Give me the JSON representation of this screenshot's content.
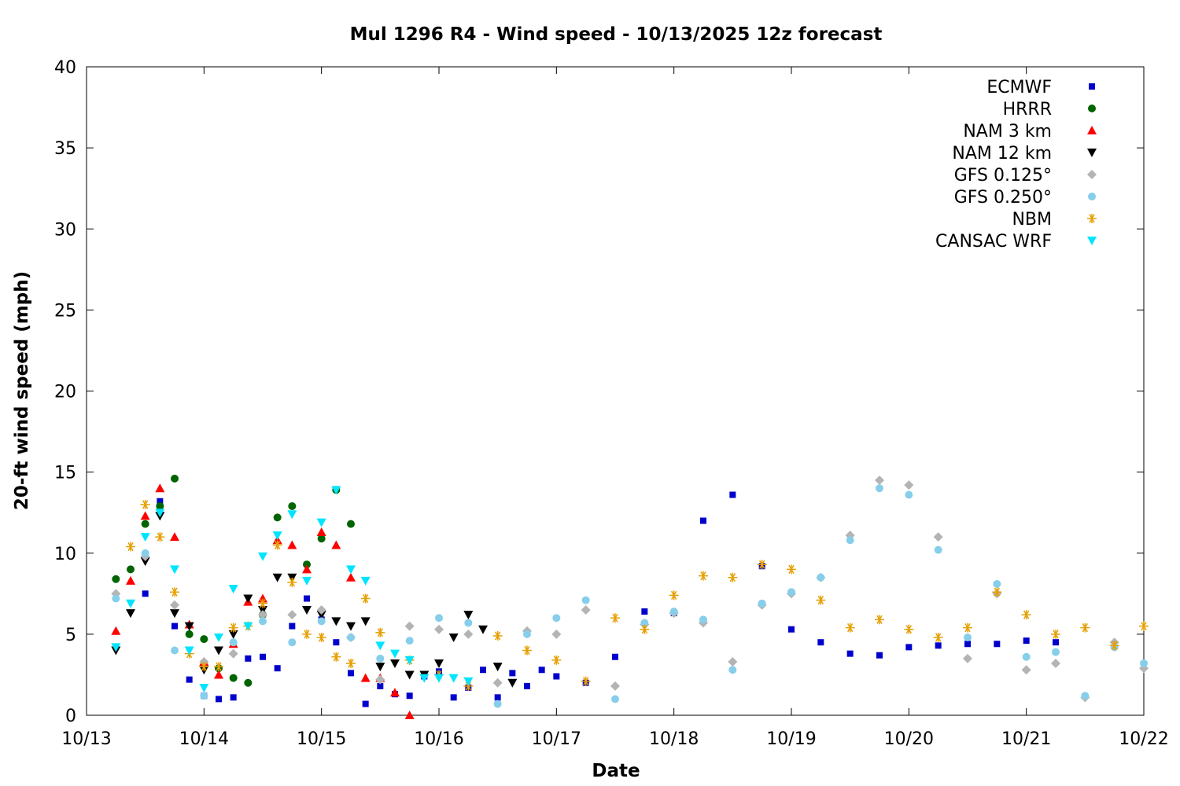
{
  "chart_data": {
    "type": "scatter",
    "title": "Mul 1296 R4 - Wind speed - 10/13/2025 12z forecast",
    "xlabel": "Date",
    "ylabel": "20-ft wind speed (mph)",
    "x_unit": "date (2025)",
    "xlim": [
      "2025-10-13T00:00",
      "2025-10-22T00:00"
    ],
    "ylim": [
      0,
      40
    ],
    "x_ticks": [
      "10/13",
      "10/14",
      "10/15",
      "10/16",
      "10/17",
      "10/18",
      "10/19",
      "10/20",
      "10/21",
      "10/22"
    ],
    "y_ticks": [
      "0",
      "5",
      "10",
      "15",
      "20",
      "25",
      "30",
      "35",
      "40"
    ],
    "grid": false,
    "legend_placement": "top-right",
    "series": [
      {
        "name": "ECMWF",
        "color": "#0000cc",
        "marker": "square",
        "x": [
          "10/13 12:00",
          "10/13 15:00",
          "10/13 18:00",
          "10/13 21:00",
          "10/14 00:00",
          "10/14 03:00",
          "10/14 06:00",
          "10/14 09:00",
          "10/14 12:00",
          "10/14 15:00",
          "10/14 18:00",
          "10/14 21:00",
          "10/15 00:00",
          "10/15 03:00",
          "10/15 06:00",
          "10/15 09:00",
          "10/15 12:00",
          "10/15 15:00",
          "10/15 18:00",
          "10/15 21:00",
          "10/16 00:00",
          "10/16 03:00",
          "10/16 06:00",
          "10/16 09:00",
          "10/16 12:00",
          "10/16 15:00",
          "10/16 18:00",
          "10/16 21:00",
          "10/17 00:00",
          "10/17 06:00",
          "10/17 12:00",
          "10/17 18:00",
          "10/18 00:00",
          "10/18 06:00",
          "10/18 12:00",
          "10/18 18:00",
          "10/19 00:00",
          "10/19 06:00",
          "10/19 12:00",
          "10/19 18:00",
          "10/20 00:00",
          "10/20 06:00",
          "10/20 12:00",
          "10/20 18:00",
          "10/21 00:00",
          "10/21 06:00"
        ],
        "y": [
          7.5,
          13.2,
          5.5,
          2.2,
          1.2,
          1.0,
          1.1,
          3.5,
          3.6,
          2.9,
          5.5,
          7.2,
          5.9,
          4.5,
          2.6,
          0.7,
          1.8,
          1.3,
          1.2,
          2.4,
          2.7,
          1.1,
          1.7,
          2.8,
          1.1,
          2.6,
          1.8,
          2.8,
          2.4,
          2.0,
          3.6,
          6.4,
          6.3,
          12.0,
          13.6,
          9.2,
          5.3,
          4.5,
          3.8,
          3.7,
          4.2,
          4.3,
          4.4,
          4.4,
          4.6,
          4.5
        ]
      },
      {
        "name": "HRRR",
        "color": "#006400",
        "marker": "circle",
        "x": [
          "10/13 06:00",
          "10/13 09:00",
          "10/13 12:00",
          "10/13 15:00",
          "10/13 18:00",
          "10/13 21:00",
          "10/14 00:00",
          "10/14 03:00",
          "10/14 06:00",
          "10/14 09:00",
          "10/14 12:00",
          "10/14 15:00",
          "10/14 18:00",
          "10/14 21:00",
          "10/15 00:00",
          "10/15 03:00",
          "10/15 06:00"
        ],
        "y": [
          8.4,
          9.0,
          11.8,
          12.9,
          14.6,
          5.0,
          4.7,
          2.9,
          2.3,
          2.0,
          6.2,
          12.2,
          12.9,
          9.3,
          10.9,
          13.9,
          11.8
        ]
      },
      {
        "name": "NAM 3 km",
        "color": "#ff0000",
        "marker": "triangle-up",
        "x": [
          "10/13 06:00",
          "10/13 09:00",
          "10/13 12:00",
          "10/13 15:00",
          "10/13 18:00",
          "10/13 21:00",
          "10/14 00:00",
          "10/14 03:00",
          "10/14 06:00",
          "10/14 09:00",
          "10/14 12:00",
          "10/14 15:00",
          "10/14 18:00",
          "10/14 21:00",
          "10/15 00:00",
          "10/15 03:00",
          "10/15 06:00",
          "10/15 09:00",
          "10/15 12:00",
          "10/15 15:00",
          "10/15 18:00"
        ],
        "y": [
          5.2,
          8.3,
          12.3,
          14.0,
          11.0,
          5.6,
          3.3,
          2.5,
          4.4,
          7.0,
          7.2,
          10.8,
          10.5,
          9.0,
          11.3,
          10.5,
          8.5,
          2.3,
          2.3,
          1.4,
          0.0
        ]
      },
      {
        "name": "NAM 12 km",
        "color": "#000000",
        "marker": "triangle-down",
        "x": [
          "10/13 06:00",
          "10/13 09:00",
          "10/13 12:00",
          "10/13 15:00",
          "10/13 18:00",
          "10/13 21:00",
          "10/14 00:00",
          "10/14 03:00",
          "10/14 06:00",
          "10/14 09:00",
          "10/14 12:00",
          "10/14 15:00",
          "10/14 18:00",
          "10/14 21:00",
          "10/15 00:00",
          "10/15 03:00",
          "10/15 06:00",
          "10/15 09:00",
          "10/15 12:00",
          "10/15 15:00",
          "10/15 18:00",
          "10/15 21:00",
          "10/16 00:00",
          "10/16 03:00",
          "10/16 06:00",
          "10/16 09:00",
          "10/16 12:00",
          "10/16 15:00"
        ],
        "y": [
          4.0,
          6.3,
          9.5,
          12.3,
          6.3,
          5.5,
          2.8,
          4.0,
          5.0,
          7.2,
          6.5,
          8.5,
          8.5,
          6.5,
          6.2,
          5.8,
          5.5,
          5.8,
          3.0,
          3.2,
          2.5,
          2.5,
          3.2,
          4.8,
          6.2,
          5.3,
          3.0,
          2.0
        ]
      },
      {
        "name": "GFS 0.125°",
        "color": "#b4b4b4",
        "marker": "diamond",
        "x": [
          "10/13 06:00",
          "10/13 12:00",
          "10/13 18:00",
          "10/14 00:00",
          "10/14 06:00",
          "10/14 12:00",
          "10/14 18:00",
          "10/15 00:00",
          "10/15 06:00",
          "10/15 12:00",
          "10/15 18:00",
          "10/16 00:00",
          "10/16 06:00",
          "10/16 12:00",
          "10/16 18:00",
          "10/17 00:00",
          "10/17 06:00",
          "10/17 12:00",
          "10/17 18:00",
          "10/18 00:00",
          "10/18 06:00",
          "10/18 12:00",
          "10/18 18:00",
          "10/19 00:00",
          "10/19 06:00",
          "10/19 12:00",
          "10/19 18:00",
          "10/20 00:00",
          "10/20 06:00",
          "10/20 12:00",
          "10/20 18:00",
          "10/21 00:00",
          "10/21 06:00",
          "10/21 12:00",
          "10/21 18:00",
          "10/22 00:00"
        ],
        "y": [
          7.5,
          9.8,
          6.8,
          3.3,
          3.8,
          6.2,
          6.2,
          6.5,
          4.8,
          2.2,
          5.5,
          5.3,
          5.0,
          2.0,
          5.2,
          5.0,
          6.5,
          1.8,
          5.6,
          6.3,
          5.7,
          3.3,
          6.8,
          7.5,
          8.5,
          11.1,
          14.5,
          14.2,
          11.0,
          3.5,
          7.5,
          2.8,
          3.2,
          1.1,
          4.5,
          2.9
        ]
      },
      {
        "name": "GFS 0.250°",
        "color": "#87ceeb",
        "marker": "circle",
        "x": [
          "10/13 06:00",
          "10/13 12:00",
          "10/13 18:00",
          "10/14 00:00",
          "10/14 06:00",
          "10/14 12:00",
          "10/14 18:00",
          "10/15 00:00",
          "10/15 06:00",
          "10/15 12:00",
          "10/15 18:00",
          "10/16 00:00",
          "10/16 06:00",
          "10/16 12:00",
          "10/16 18:00",
          "10/17 00:00",
          "10/17 06:00",
          "10/17 12:00",
          "10/17 18:00",
          "10/18 00:00",
          "10/18 06:00",
          "10/18 12:00",
          "10/18 18:00",
          "10/19 00:00",
          "10/19 06:00",
          "10/19 12:00",
          "10/19 18:00",
          "10/20 00:00",
          "10/20 06:00",
          "10/20 12:00",
          "10/20 18:00",
          "10/21 00:00",
          "10/21 06:00",
          "10/21 12:00",
          "10/21 18:00",
          "10/22 00:00"
        ],
        "y": [
          7.2,
          10.0,
          4.0,
          1.2,
          4.5,
          5.8,
          4.5,
          5.8,
          4.8,
          3.5,
          4.6,
          6.0,
          5.7,
          0.7,
          5.0,
          6.0,
          7.1,
          1.0,
          5.7,
          6.4,
          5.9,
          2.8,
          6.9,
          7.6,
          8.5,
          10.8,
          14.0,
          13.6,
          10.2,
          4.8,
          8.1,
          3.6,
          3.9,
          1.2,
          4.2,
          3.2
        ]
      },
      {
        "name": "NBM",
        "color": "#e69f00",
        "marker": "asterisk",
        "x": [
          "10/13 09:00",
          "10/13 12:00",
          "10/13 15:00",
          "10/13 18:00",
          "10/13 21:00",
          "10/14 00:00",
          "10/14 03:00",
          "10/14 06:00",
          "10/14 09:00",
          "10/14 12:00",
          "10/14 15:00",
          "10/14 18:00",
          "10/14 21:00",
          "10/15 00:00",
          "10/15 03:00",
          "10/15 06:00",
          "10/15 09:00",
          "10/15 12:00",
          "10/15 18:00",
          "10/16 00:00",
          "10/16 06:00",
          "10/16 12:00",
          "10/16 18:00",
          "10/17 00:00",
          "10/17 06:00",
          "10/17 12:00",
          "10/17 18:00",
          "10/18 00:00",
          "10/18 06:00",
          "10/18 12:00",
          "10/18 18:00",
          "10/19 00:00",
          "10/19 06:00",
          "10/19 12:00",
          "10/19 18:00",
          "10/20 00:00",
          "10/20 06:00",
          "10/20 12:00",
          "10/20 18:00",
          "10/21 00:00",
          "10/21 06:00",
          "10/21 12:00",
          "10/21 18:00",
          "10/22 00:00"
        ],
        "y": [
          10.4,
          13.0,
          11.0,
          7.6,
          3.8,
          3.0,
          3.0,
          5.4,
          5.5,
          6.9,
          10.5,
          8.2,
          5.0,
          4.8,
          3.6,
          3.2,
          7.2,
          5.1,
          3.4,
          2.5,
          1.8,
          4.9,
          4.0,
          3.4,
          2.1,
          6.0,
          5.3,
          7.4,
          8.6,
          8.5,
          9.3,
          9.0,
          7.1,
          5.4,
          5.9,
          5.3,
          4.8,
          5.4,
          7.6,
          6.2,
          5.0,
          5.4,
          4.3,
          5.5
        ]
      },
      {
        "name": "CANSAC WRF",
        "color": "#00e5ff",
        "marker": "triangle-down",
        "x": [
          "10/13 06:00",
          "10/13 09:00",
          "10/13 12:00",
          "10/13 15:00",
          "10/13 18:00",
          "10/13 21:00",
          "10/14 00:00",
          "10/14 03:00",
          "10/14 06:00",
          "10/14 09:00",
          "10/14 12:00",
          "10/14 15:00",
          "10/14 18:00",
          "10/14 21:00",
          "10/15 00:00",
          "10/15 03:00",
          "10/15 06:00",
          "10/15 09:00",
          "10/15 12:00",
          "10/15 15:00",
          "10/15 18:00",
          "10/15 21:00",
          "10/16 00:00",
          "10/16 03:00",
          "10/16 06:00"
        ],
        "y": [
          4.2,
          6.9,
          11.0,
          12.5,
          9.0,
          4.0,
          1.7,
          4.8,
          7.8,
          5.5,
          9.8,
          11.1,
          12.4,
          8.3,
          11.9,
          13.9,
          9.0,
          8.3,
          4.3,
          3.8,
          3.4,
          2.3,
          2.3,
          2.3,
          2.1
        ]
      }
    ]
  }
}
